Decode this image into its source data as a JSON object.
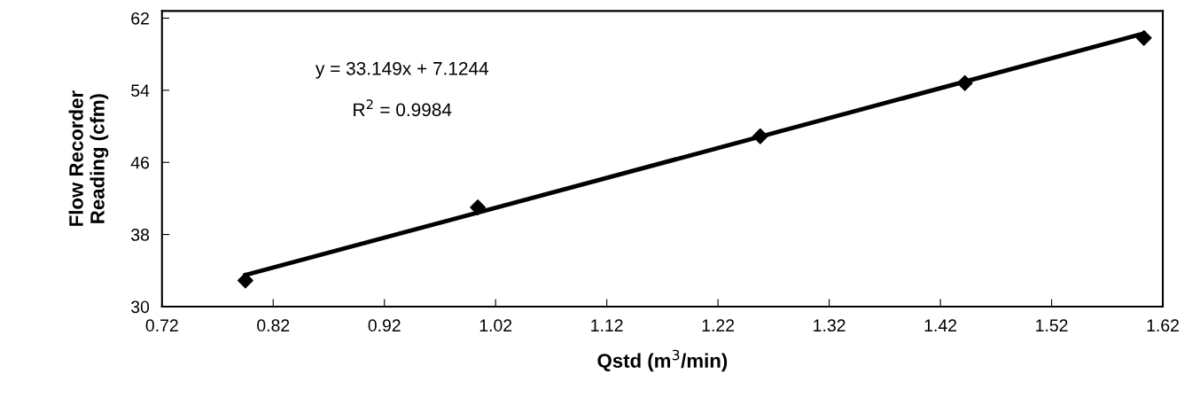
{
  "chart_data": {
    "type": "scatter",
    "xlabel": "Qstd (m$^{3}$/min)",
    "ylabel": "Flow Recorder\nReading (cfm)",
    "annotations": [
      "y = 33.149x + 7.1244",
      "R$^{2}$ = 0.9984"
    ],
    "series": [
      {
        "color": "#000000",
        "marker": "diamond",
        "x": [
          0.795,
          1.004,
          1.258,
          1.442,
          1.603
        ],
        "values": [
          32.9,
          41.0,
          48.9,
          54.8,
          59.8
        ]
      },
      {
        "type": "line",
        "color": "#000000",
        "line_style": "solid",
        "x": [
          0.795,
          1.603
        ],
        "values": [
          33.5,
          60.3
        ]
      }
    ],
    "xlim": [
      0.72,
      1.62
    ],
    "ylim": [
      30,
      62.8
    ],
    "xticks": [
      0.72,
      0.82,
      0.92,
      1.02,
      1.12,
      1.22,
      1.32,
      1.42,
      1.52,
      1.62
    ],
    "yticks": [
      30,
      38,
      46,
      54,
      62
    ],
    "grid": false,
    "legend": false
  }
}
